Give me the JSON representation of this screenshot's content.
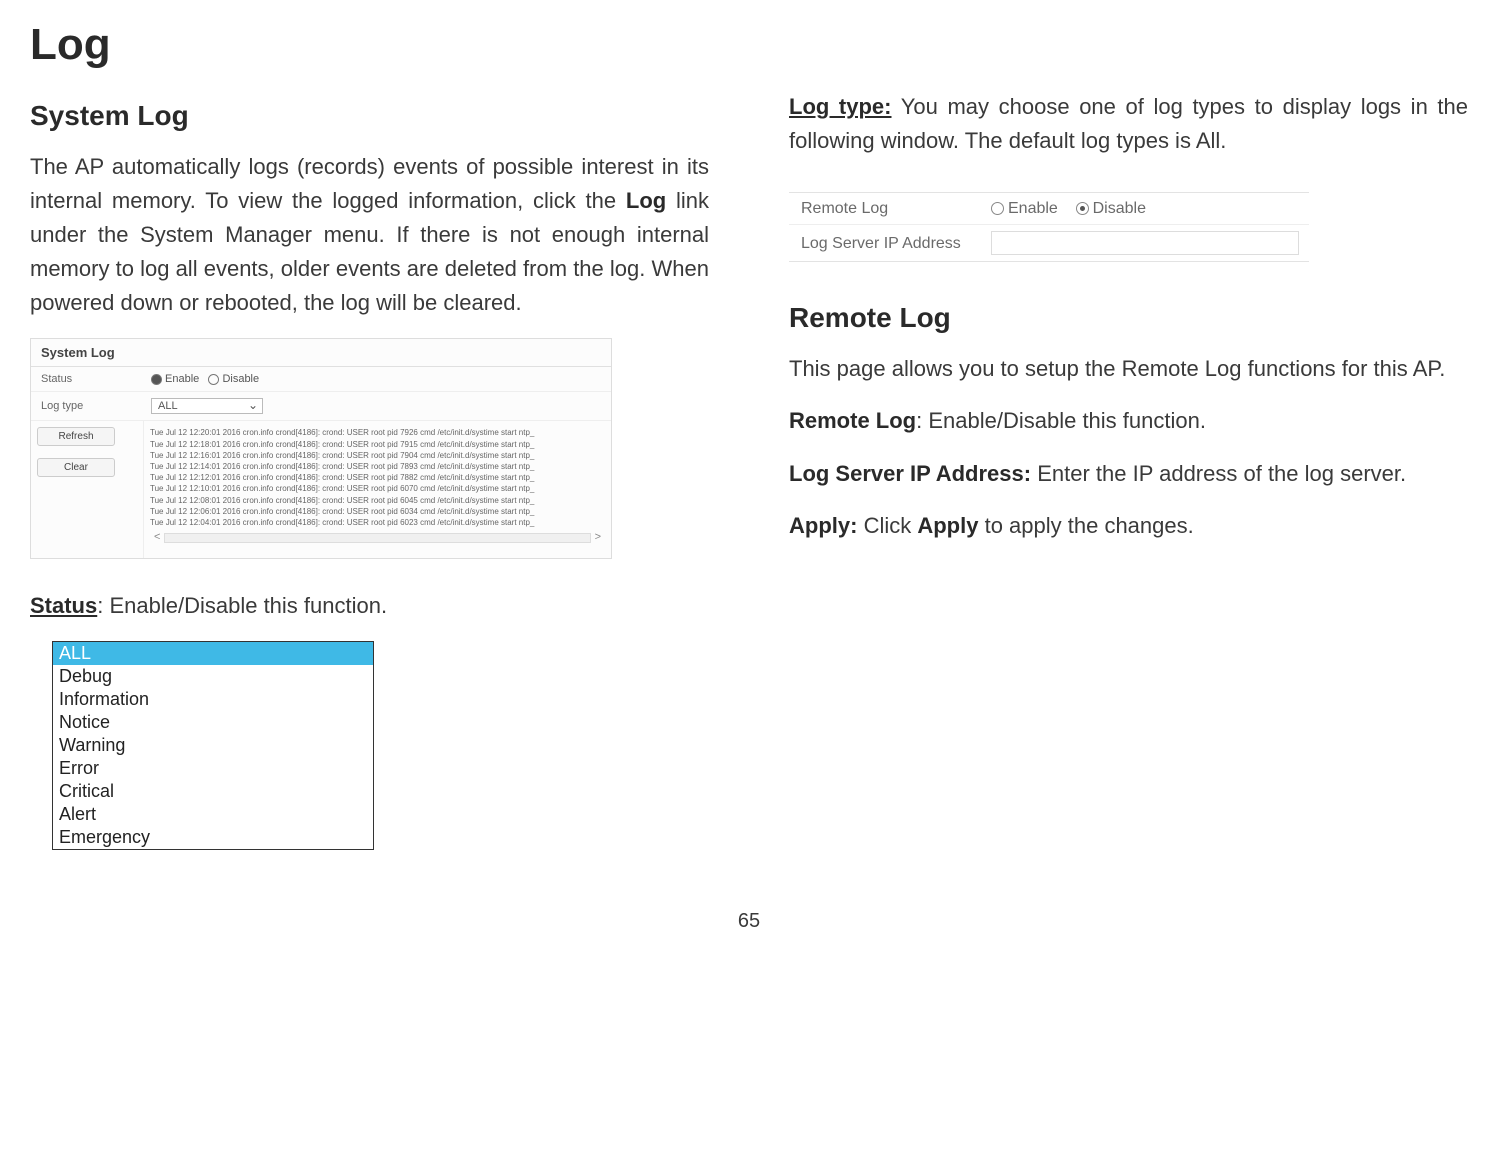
{
  "page": {
    "title": "Log",
    "number": "65"
  },
  "left": {
    "heading": "System Log",
    "intro_pre": "The AP automatically logs (records) events of possible interest in its internal memory. To view the logged information, click the ",
    "intro_bold": "Log",
    "intro_post": " link under the System Manager menu. If there is not enough internal memory to log all events, older events are deleted from the log. When powered down or rebooted, the log will be cleared.",
    "status_label": "Status",
    "status_text": ": Enable/Disable this function."
  },
  "syslog": {
    "title": "System Log",
    "status_label": "Status",
    "radio_enable": "Enable",
    "radio_disable": "Disable",
    "logtype_label": "Log type",
    "logtype_value": "ALL",
    "btn_refresh": "Refresh",
    "btn_clear": "Clear",
    "lines": [
      "Tue Jul 12 12:20:01 2016 cron.info crond[4186]: crond: USER root pid 7926 cmd /etc/init.d/systime start ntp_",
      "Tue Jul 12 12:18:01 2016 cron.info crond[4186]: crond: USER root pid 7915 cmd /etc/init.d/systime start ntp_",
      "Tue Jul 12 12:16:01 2016 cron.info crond[4186]: crond: USER root pid 7904 cmd /etc/init.d/systime start ntp_",
      "Tue Jul 12 12:14:01 2016 cron.info crond[4186]: crond: USER root pid 7893 cmd /etc/init.d/systime start ntp_",
      "Tue Jul 12 12:12:01 2016 cron.info crond[4186]: crond: USER root pid 7882 cmd /etc/init.d/systime start ntp_",
      "Tue Jul 12 12:10:01 2016 cron.info crond[4186]: crond: USER root pid 6070 cmd /etc/init.d/systime start ntp_",
      "Tue Jul 12 12:08:01 2016 cron.info crond[4186]: crond: USER root pid 6045 cmd /etc/init.d/systime start ntp_",
      "Tue Jul 12 12:06:01 2016 cron.info crond[4186]: crond: USER root pid 6034 cmd /etc/init.d/systime start ntp_",
      "Tue Jul 12 12:04:01 2016 cron.info crond[4186]: crond: USER root pid 6023 cmd /etc/init.d/systime start ntp_"
    ]
  },
  "logtype_list": {
    "items": [
      "ALL",
      "Debug",
      "Information",
      "Notice",
      "Warning",
      "Error",
      "Critical",
      "Alert",
      "Emergency"
    ]
  },
  "right": {
    "logtype_label": "Log type:",
    "logtype_text": " You may choose one of log types to display logs in the following window. The default log types is All.",
    "remote_heading": "Remote Log",
    "remote_intro": "This page allows you to setup the Remote Log functions for this AP.",
    "remotelog_label": "Remote Log",
    "remotelog_text": ": Enable/Disable this function.",
    "logserver_label": "Log Server IP Address:",
    "logserver_text": " Enter the IP address of the log server.",
    "apply_label": "Apply:",
    "apply_mid": " Click ",
    "apply_bold": "Apply",
    "apply_post": " to apply the changes."
  },
  "remotelog": {
    "row1_label": "Remote Log",
    "enable": "Enable",
    "disable": "Disable",
    "row2_label": "Log Server IP Address"
  }
}
